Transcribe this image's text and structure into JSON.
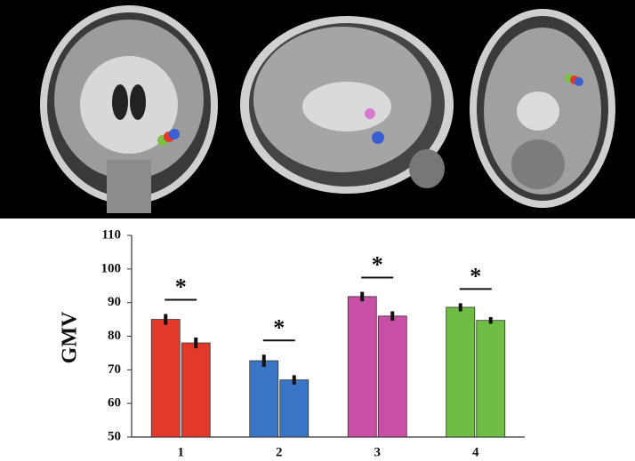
{
  "chart_data": {
    "type": "bar",
    "y_label": "GMV",
    "categories": [
      "1",
      "2",
      "3",
      "4"
    ],
    "colors": [
      "#e3392b",
      "#3a74c4",
      "#c84fa6",
      "#6fbd45"
    ],
    "series": [
      {
        "values": [
          85,
          72.7,
          91.8,
          88.6
        ],
        "errors": [
          1.6,
          1.8,
          1.4,
          1.2
        ]
      },
      {
        "values": [
          78,
          67,
          86,
          84.7
        ],
        "errors": [
          1.6,
          1.4,
          1.4,
          1.0
        ]
      }
    ],
    "significance": [
      "*",
      "*",
      "*",
      "*"
    ],
    "ylim": [
      50,
      110
    ],
    "yticks": [
      50,
      60,
      70,
      80,
      90,
      100,
      110
    ],
    "grid": false
  }
}
